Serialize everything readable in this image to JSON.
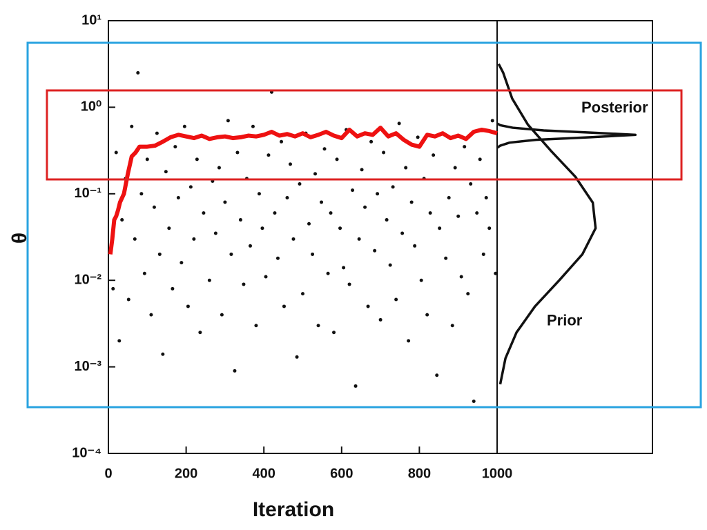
{
  "chart_data": [
    {
      "type": "scatter",
      "x_label": "Iteration",
      "y_label": "θ",
      "log_y": true,
      "xlim": [
        0,
        1000
      ],
      "xticks": [
        0,
        200,
        400,
        600,
        800,
        1000
      ],
      "ylim": [
        0.0001,
        10
      ],
      "yticks": [
        {
          "value": 0.0001,
          "label": "10⁻⁴"
        },
        {
          "value": 0.001,
          "label": "10⁻³"
        },
        {
          "value": 0.01,
          "label": "10⁻²"
        },
        {
          "value": 0.1,
          "label": "10⁻¹"
        },
        {
          "value": 1,
          "label": "10⁰"
        },
        {
          "value": 10,
          "label": "10¹"
        }
      ],
      "series": [
        {
          "color": "#111111",
          "style": "points",
          "x": [
            12,
            20,
            28,
            35,
            44,
            52,
            60,
            68,
            76,
            85,
            93,
            100,
            110,
            118,
            125,
            132,
            140,
            148,
            156,
            165,
            172,
            180,
            188,
            196,
            205,
            212,
            220,
            228,
            236,
            245,
            252,
            260,
            268,
            276,
            285,
            292,
            300,
            308,
            316,
            325,
            332,
            340,
            348,
            356,
            365,
            372,
            380,
            388,
            396,
            405,
            412,
            420,
            428,
            436,
            445,
            452,
            460,
            468,
            476,
            485,
            492,
            500,
            508,
            516,
            525,
            532,
            540,
            548,
            556,
            565,
            572,
            580,
            588,
            596,
            605,
            612,
            620,
            628,
            636,
            645,
            652,
            660,
            668,
            676,
            685,
            692,
            700,
            708,
            716,
            725,
            732,
            740,
            748,
            756,
            765,
            772,
            780,
            788,
            796,
            805,
            812,
            820,
            828,
            836,
            845,
            852,
            860,
            868,
            876,
            885,
            892,
            900,
            908,
            916,
            925,
            932,
            940,
            948,
            956,
            965,
            972,
            980,
            988,
            996
          ],
          "values": [
            0.008,
            0.3,
            0.002,
            0.05,
            0.15,
            0.006,
            0.6,
            0.03,
            2.5,
            0.1,
            0.012,
            0.25,
            0.004,
            0.07,
            0.5,
            0.02,
            0.0014,
            0.18,
            0.04,
            0.008,
            0.35,
            0.09,
            0.016,
            0.6,
            0.005,
            0.12,
            0.03,
            0.25,
            0.0025,
            0.06,
            0.45,
            0.01,
            0.14,
            0.035,
            0.2,
            0.004,
            0.08,
            0.7,
            0.02,
            0.0009,
            0.3,
            0.05,
            0.009,
            0.15,
            0.025,
            0.6,
            0.003,
            0.1,
            0.04,
            0.011,
            0.28,
            1.5,
            0.06,
            0.018,
            0.4,
            0.005,
            0.09,
            0.22,
            0.03,
            0.0013,
            0.13,
            0.007,
            0.5,
            0.045,
            0.02,
            0.17,
            0.003,
            0.08,
            0.33,
            0.012,
            0.06,
            0.0025,
            0.25,
            0.04,
            0.014,
            0.55,
            0.009,
            0.11,
            0.0006,
            0.03,
            0.19,
            0.07,
            0.005,
            0.4,
            0.022,
            0.1,
            0.0035,
            0.3,
            0.05,
            0.015,
            0.12,
            0.006,
            0.65,
            0.035,
            0.2,
            0.002,
            0.08,
            0.025,
            0.45,
            0.01,
            0.15,
            0.004,
            0.06,
            0.28,
            0.0008,
            0.04,
            0.5,
            0.018,
            0.09,
            0.003,
            0.2,
            0.055,
            0.011,
            0.35,
            0.007,
            0.13,
            0.0004,
            0.06,
            0.25,
            0.02,
            0.09,
            0.04,
            0.7,
            0.012
          ]
        },
        {
          "color": "#ee1111",
          "style": "chain",
          "x": [
            5,
            10,
            15,
            20,
            25,
            30,
            40,
            50,
            60,
            70,
            80,
            100,
            120,
            140,
            160,
            180,
            200,
            220,
            240,
            260,
            280,
            300,
            320,
            340,
            360,
            380,
            400,
            420,
            440,
            460,
            480,
            500,
            520,
            540,
            560,
            580,
            600,
            620,
            640,
            660,
            680,
            700,
            720,
            740,
            760,
            780,
            800,
            820,
            840,
            860,
            880,
            900,
            920,
            940,
            960,
            980,
            1000
          ],
          "values": [
            0.02,
            0.03,
            0.05,
            0.055,
            0.065,
            0.08,
            0.1,
            0.17,
            0.27,
            0.3,
            0.35,
            0.35,
            0.36,
            0.4,
            0.45,
            0.48,
            0.46,
            0.44,
            0.47,
            0.43,
            0.45,
            0.46,
            0.44,
            0.45,
            0.47,
            0.46,
            0.48,
            0.52,
            0.47,
            0.49,
            0.46,
            0.5,
            0.45,
            0.48,
            0.52,
            0.47,
            0.44,
            0.55,
            0.46,
            0.5,
            0.48,
            0.58,
            0.46,
            0.5,
            0.42,
            0.37,
            0.35,
            0.48,
            0.46,
            0.5,
            0.44,
            0.47,
            0.43,
            0.52,
            0.55,
            0.53,
            0.5
          ]
        }
      ]
    },
    {
      "type": "line",
      "log_y": true,
      "xlim": [
        0,
        1
      ],
      "ylim": [
        0.0001,
        10
      ],
      "color": "#111111",
      "series": [
        {
          "name": "Posterior",
          "x": [
            0,
            0.02,
            0.1,
            0.3,
            0.6,
            0.89,
            0.6,
            0.25,
            0.08,
            0.02,
            0
          ],
          "values": [
            0.65,
            0.62,
            0.58,
            0.54,
            0.51,
            0.48,
            0.45,
            0.42,
            0.39,
            0.36,
            0.34
          ]
        },
        {
          "name": "Prior",
          "x": [
            0.01,
            0.039,
            0.097,
            0.198,
            0.345,
            0.503,
            0.616,
            0.634,
            0.549,
            0.4,
            0.244,
            0.125,
            0.054,
            0.02
          ],
          "values": [
            3.16,
            2.51,
            1.26,
            0.63,
            0.316,
            0.158,
            0.079,
            0.04,
            0.02,
            0.01,
            0.005,
            0.0025,
            0.00126,
            0.00063
          ]
        }
      ]
    }
  ]
}
